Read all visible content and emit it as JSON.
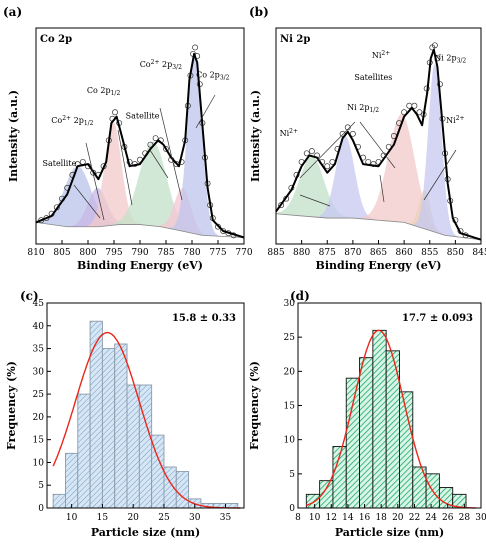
{
  "panels": [
    "(a)",
    "(b)",
    "(c)",
    "(d)"
  ],
  "chart_data": [
    {
      "panel": "(a)",
      "type": "line",
      "label": "Co 2p",
      "xlabel": "Binding Energy (eV)",
      "ylabel": "Intensity (a.u.)",
      "x_reversed": true,
      "xlim": [
        810,
        770
      ],
      "ylim": [
        0,
        1
      ],
      "ticks": [
        "810",
        "805",
        "800",
        "795",
        "790",
        "785",
        "780",
        "775",
        "770"
      ],
      "background": [
        [
          810,
          0.1
        ],
        [
          804,
          0.08
        ],
        [
          798,
          0.08
        ],
        [
          794,
          0.09
        ],
        [
          790,
          0.09
        ],
        [
          786,
          0.08
        ],
        [
          782,
          0.06
        ],
        [
          778,
          0.04
        ],
        [
          770,
          0.03
        ]
      ],
      "envelope": [
        [
          810,
          0.1
        ],
        [
          807,
          0.13
        ],
        [
          804,
          0.23
        ],
        [
          802,
          0.36
        ],
        [
          800,
          0.37
        ],
        [
          798,
          0.3
        ],
        [
          796.5,
          0.38
        ],
        [
          795.5,
          0.56
        ],
        [
          794.5,
          0.59
        ],
        [
          793.5,
          0.5
        ],
        [
          792,
          0.36
        ],
        [
          790,
          0.37
        ],
        [
          788,
          0.44
        ],
        [
          786.5,
          0.48
        ],
        [
          785.5,
          0.46
        ],
        [
          784,
          0.4
        ],
        [
          782.5,
          0.36
        ],
        [
          781.3,
          0.48
        ],
        [
          780.5,
          0.76
        ],
        [
          779.6,
          0.88
        ],
        [
          779,
          0.84
        ],
        [
          778,
          0.55
        ],
        [
          777,
          0.26
        ],
        [
          776,
          0.11
        ],
        [
          774,
          0.06
        ],
        [
          770,
          0.03
        ]
      ],
      "raw": [
        [
          809,
          0.11
        ],
        [
          808,
          0.12
        ],
        [
          807,
          0.14
        ],
        [
          806,
          0.17
        ],
        [
          805,
          0.21
        ],
        [
          804,
          0.26
        ],
        [
          803,
          0.32
        ],
        [
          802,
          0.37
        ],
        [
          801,
          0.38
        ],
        [
          800,
          0.36
        ],
        [
          799,
          0.33
        ],
        [
          798,
          0.32
        ],
        [
          797,
          0.36
        ],
        [
          796,
          0.48
        ],
        [
          795.3,
          0.58
        ],
        [
          794.8,
          0.61
        ],
        [
          794,
          0.56
        ],
        [
          793,
          0.45
        ],
        [
          792,
          0.38
        ],
        [
          791,
          0.37
        ],
        [
          790,
          0.39
        ],
        [
          789,
          0.42
        ],
        [
          788,
          0.46
        ],
        [
          787,
          0.49
        ],
        [
          786,
          0.48
        ],
        [
          785,
          0.44
        ],
        [
          784,
          0.39
        ],
        [
          783,
          0.37
        ],
        [
          782,
          0.38
        ],
        [
          781.3,
          0.48
        ],
        [
          780.8,
          0.64
        ],
        [
          780.3,
          0.78
        ],
        [
          779.8,
          0.88
        ],
        [
          779.4,
          0.91
        ],
        [
          779,
          0.87
        ],
        [
          778.5,
          0.74
        ],
        [
          778,
          0.56
        ],
        [
          777.5,
          0.4
        ],
        [
          777,
          0.28
        ],
        [
          776.5,
          0.18
        ],
        [
          776,
          0.12
        ],
        [
          775,
          0.08
        ],
        [
          774,
          0.06
        ],
        [
          773,
          0.05
        ],
        [
          772,
          0.04
        ]
      ],
      "components": [
        {
          "name": "Satellite",
          "center": 802,
          "height": 0.28,
          "width": 2.6,
          "color": "#b9c3ea"
        },
        {
          "name": "Co2+ 2p1/2",
          "center": 798.2,
          "height": 0.18,
          "width": 1.8,
          "color": "#c8b7e6"
        },
        {
          "name": "Co 2p1/2",
          "center": 795.2,
          "height": 0.48,
          "width": 1.6,
          "color": "#f2c9c9"
        },
        {
          "name": "Satellite",
          "center": 787.5,
          "height": 0.39,
          "width": 2.6,
          "color": "#c3e0c8"
        },
        {
          "name": "Co2+ 2p3/2",
          "center": 781.8,
          "height": 0.2,
          "width": 1.6,
          "color": "#f4c5d3"
        },
        {
          "name": "Co 2p3/2",
          "center": 779.5,
          "height": 0.82,
          "width": 1.4,
          "color": "#bfc4ee"
        }
      ],
      "peak_labels": [
        {
          "text": "Satellite",
          "x": 805.5,
          "y": 0.36
        },
        {
          "main": "Co",
          "sup": "2+",
          "rest": " 2p",
          "sub": "1/2",
          "x": 803,
          "y": 0.56
        },
        {
          "main": "Co 2p",
          "sub": "1/2",
          "x": 797,
          "y": 0.7
        },
        {
          "text": "Satellite",
          "x": 789.5,
          "y": 0.58
        },
        {
          "main": "Co",
          "sup": "2+",
          "rest": " 2p",
          "sub": "3/2",
          "x": 786,
          "y": 0.82
        },
        {
          "main": "Co 2p",
          "sub": "3/2",
          "x": 776,
          "y": 0.77
        }
      ]
    },
    {
      "panel": "(b)",
      "type": "line",
      "label": "Ni 2p",
      "xlabel": "Binding Energy (eV)",
      "ylabel": "Intensity (a.u.)",
      "x_reversed": true,
      "xlim": [
        885,
        845
      ],
      "ylim": [
        0,
        1
      ],
      "ticks": [
        "885",
        "880",
        "875",
        "870",
        "865",
        "860",
        "855",
        "850",
        "845"
      ],
      "background": [
        [
          885,
          0.14
        ],
        [
          880,
          0.13
        ],
        [
          875,
          0.12
        ],
        [
          870,
          0.12
        ],
        [
          865,
          0.11
        ],
        [
          860,
          0.1
        ],
        [
          856,
          0.07
        ],
        [
          852,
          0.04
        ],
        [
          845,
          0.02
        ]
      ],
      "envelope": [
        [
          885,
          0.15
        ],
        [
          882,
          0.25
        ],
        [
          880,
          0.36
        ],
        [
          878.5,
          0.41
        ],
        [
          877,
          0.4
        ],
        [
          875,
          0.33
        ],
        [
          873.5,
          0.37
        ],
        [
          872,
          0.49
        ],
        [
          871,
          0.52
        ],
        [
          870,
          0.48
        ],
        [
          868,
          0.37
        ],
        [
          865,
          0.36
        ],
        [
          862,
          0.46
        ],
        [
          860,
          0.59
        ],
        [
          858.5,
          0.63
        ],
        [
          857.5,
          0.6
        ],
        [
          856.5,
          0.55
        ],
        [
          855.5,
          0.7
        ],
        [
          854.8,
          0.86
        ],
        [
          854.2,
          0.9
        ],
        [
          853.5,
          0.82
        ],
        [
          852.5,
          0.55
        ],
        [
          851.5,
          0.28
        ],
        [
          850.5,
          0.12
        ],
        [
          849,
          0.05
        ],
        [
          845,
          0.02
        ]
      ],
      "raw": [
        [
          884,
          0.18
        ],
        [
          883,
          0.21
        ],
        [
          882,
          0.26
        ],
        [
          881,
          0.32
        ],
        [
          880,
          0.38
        ],
        [
          879,
          0.42
        ],
        [
          878,
          0.43
        ],
        [
          877,
          0.41
        ],
        [
          876,
          0.38
        ],
        [
          875,
          0.36
        ],
        [
          874,
          0.38
        ],
        [
          873,
          0.44
        ],
        [
          872,
          0.51
        ],
        [
          871,
          0.54
        ],
        [
          870,
          0.51
        ],
        [
          869,
          0.45
        ],
        [
          868,
          0.4
        ],
        [
          867,
          0.38
        ],
        [
          866,
          0.37
        ],
        [
          865,
          0.38
        ],
        [
          864,
          0.41
        ],
        [
          863,
          0.45
        ],
        [
          862,
          0.5
        ],
        [
          861,
          0.56
        ],
        [
          860,
          0.61
        ],
        [
          859,
          0.64
        ],
        [
          858,
          0.64
        ],
        [
          857,
          0.61
        ],
        [
          856.2,
          0.6
        ],
        [
          855.6,
          0.72
        ],
        [
          855,
          0.84
        ],
        [
          854.5,
          0.91
        ],
        [
          854,
          0.92
        ],
        [
          853.5,
          0.86
        ],
        [
          853,
          0.74
        ],
        [
          852.5,
          0.58
        ],
        [
          852,
          0.42
        ],
        [
          851.5,
          0.3
        ],
        [
          851,
          0.2
        ],
        [
          850,
          0.11
        ],
        [
          849,
          0.06
        ],
        [
          848,
          0.04
        ]
      ],
      "components": [
        {
          "name": "Ni2+",
          "center": 878,
          "height": 0.28,
          "width": 2.4,
          "color": "#c3e0c8"
        },
        {
          "name": "Ni 2p1/2",
          "center": 871.5,
          "height": 0.38,
          "width": 1.8,
          "color": "#c5c8f0"
        },
        {
          "name": "Ni2+ Satellites",
          "center": 860.5,
          "height": 0.5,
          "width": 2.6,
          "color": "#f2c9c9"
        },
        {
          "name": "Ni2+",
          "center": 856,
          "height": 0.18,
          "width": 1.1,
          "color": "#ead2b8"
        },
        {
          "name": "Ni 2p3/2",
          "center": 854,
          "height": 0.78,
          "width": 1.3,
          "color": "#c5c8f0"
        }
      ],
      "peak_labels": [
        {
          "main": "Ni",
          "sup": "2+",
          "x": 882.5,
          "y": 0.5
        },
        {
          "main": "Ni",
          "sup": "2+",
          "x": 864.5,
          "y": 0.86
        },
        {
          "text": "Satellites",
          "x": 866,
          "y": 0.76
        },
        {
          "main": "Ni 2p",
          "sub": "1/2",
          "x": 868,
          "y": 0.62
        },
        {
          "main": "Ni 2p",
          "sub": "3/2",
          "x": 851,
          "y": 0.85
        },
        {
          "main": "Ni",
          "sup": "2+",
          "x": 850,
          "y": 0.56
        }
      ]
    },
    {
      "panel": "(c)",
      "type": "bar",
      "xlabel": "Particle size  (nm)",
      "ylabel": "Frequency (%)",
      "annotation": "15.8 ± 0.33",
      "xlim": [
        6,
        38
      ],
      "ylim": [
        0,
        45
      ],
      "xticks": [
        10,
        15,
        20,
        25,
        30,
        35
      ],
      "yticks": [
        0,
        5,
        10,
        15,
        20,
        25,
        30,
        35,
        40,
        45
      ],
      "bin_width": 2,
      "bin_left": [
        7,
        9,
        11,
        13,
        15,
        17,
        19,
        21,
        23,
        25,
        27,
        29,
        31,
        33,
        35
      ],
      "values": [
        3,
        12,
        25,
        41,
        35,
        36,
        27,
        27,
        16,
        9,
        8,
        2,
        1,
        1,
        1
      ],
      "fit": {
        "type": "gaussian",
        "mean": 15.8,
        "sigma": 5.2,
        "amplitude": 38.5
      },
      "bar_color": "#b9d3ea",
      "fit_color": "#e8281c"
    },
    {
      "panel": "(d)",
      "type": "bar",
      "xlabel": "Particle size  (nm)",
      "ylabel": "Frequency (%)",
      "annotation": "17.7 ± 0.093",
      "xlim": [
        8,
        30
      ],
      "ylim": [
        0,
        30
      ],
      "xticks": [
        8,
        10,
        12,
        14,
        16,
        18,
        20,
        22,
        24,
        26,
        28,
        30
      ],
      "yticks": [
        0,
        5,
        10,
        15,
        20,
        25,
        30
      ],
      "bin_width": 1.6,
      "bin_left": [
        9.0,
        10.6,
        12.2,
        13.8,
        15.4,
        17.0,
        18.6,
        20.2,
        21.8,
        23.4,
        25.0,
        26.6
      ],
      "values": [
        2,
        4,
        9,
        19,
        22,
        26,
        23,
        17,
        6,
        5,
        3,
        2
      ],
      "fit": {
        "type": "gaussian",
        "mean": 17.7,
        "sigma": 3.0,
        "amplitude": 26
      },
      "bar_color": "#3ccf8e",
      "fit_color": "#e8281c"
    }
  ]
}
